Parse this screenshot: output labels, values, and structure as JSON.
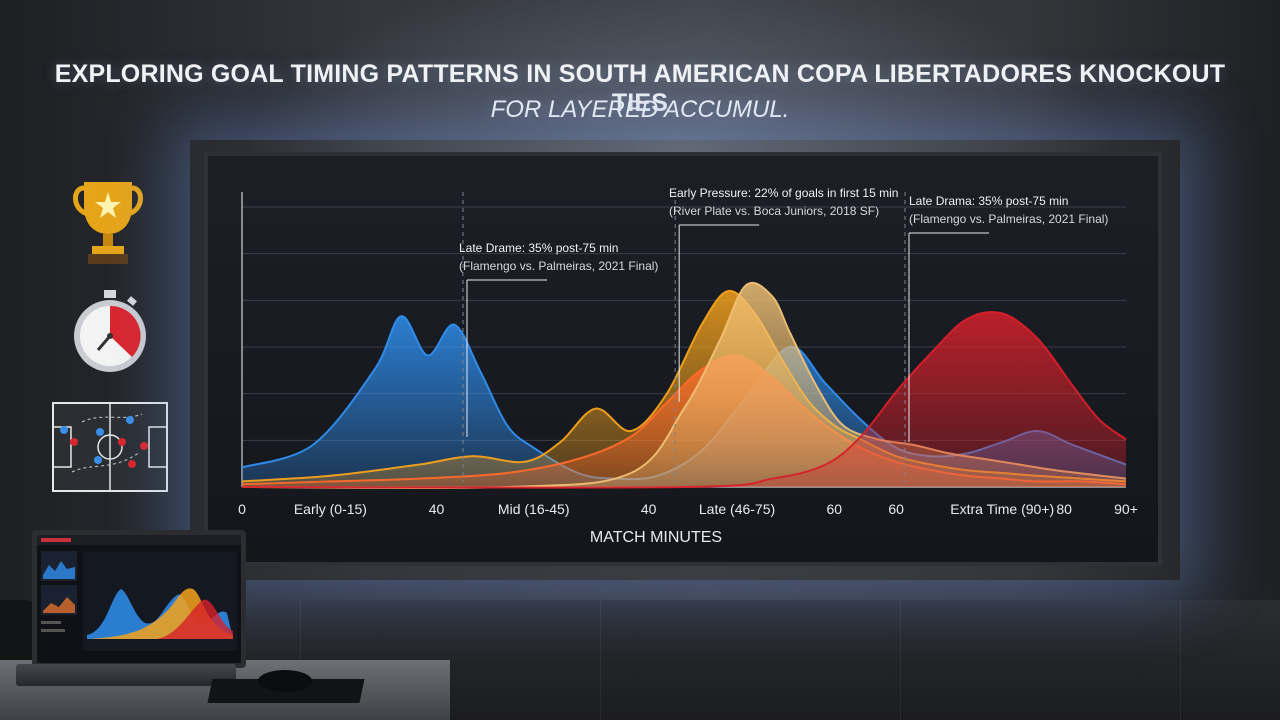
{
  "headline": {
    "line1": "EXPLORING GOAL TIMING PATTERNS IN SOUTH AMERICAN COPA LIBERTADORES KNOCKOUT TIES",
    "line2": "FOR LAYERED ACCUMUL."
  },
  "chart_data": {
    "type": "area",
    "xlabel": "MATCH MINUTES",
    "ylabel": "",
    "xlim": [
      0,
      100
    ],
    "ylim": [
      0,
      1
    ],
    "grid": true,
    "tick_labels": [
      {
        "x": 0,
        "text": "0"
      },
      {
        "x": 10,
        "text": "Early (0-15)"
      },
      {
        "x": 22,
        "text": "40"
      },
      {
        "x": 33,
        "text": "Mid (16-45)"
      },
      {
        "x": 46,
        "text": "40"
      },
      {
        "x": 56,
        "text": "Late (46-75)"
      },
      {
        "x": 67,
        "text": "60"
      },
      {
        "x": 74,
        "text": "60"
      },
      {
        "x": 86,
        "text": "Extra Time (90+)"
      },
      {
        "x": 93,
        "text": "80"
      },
      {
        "x": 100,
        "text": "90+"
      }
    ],
    "series": [
      {
        "color": "#2f8ff0",
        "x": [
          0,
          8,
          15,
          18,
          21,
          24,
          27,
          30,
          33,
          38,
          42,
          47,
          52,
          57,
          62,
          66,
          70,
          74,
          78,
          82,
          86,
          90,
          94,
          100
        ],
        "y": [
          0.07,
          0.15,
          0.42,
          0.61,
          0.47,
          0.58,
          0.41,
          0.22,
          0.14,
          0.05,
          0.03,
          0.04,
          0.13,
          0.32,
          0.5,
          0.37,
          0.24,
          0.14,
          0.11,
          0.12,
          0.16,
          0.2,
          0.15,
          0.08
        ]
      },
      {
        "color": "#f5a21c",
        "x": [
          0,
          10,
          20,
          26,
          32,
          36,
          40,
          44,
          48,
          52,
          55,
          58,
          61,
          64,
          67,
          70,
          74,
          78,
          82,
          86,
          90,
          95,
          100
        ],
        "y": [
          0.02,
          0.04,
          0.08,
          0.11,
          0.09,
          0.16,
          0.28,
          0.2,
          0.33,
          0.58,
          0.7,
          0.62,
          0.46,
          0.31,
          0.22,
          0.17,
          0.11,
          0.08,
          0.06,
          0.05,
          0.04,
          0.03,
          0.02
        ]
      },
      {
        "color": "#ff6a2a",
        "x": [
          0,
          10,
          20,
          30,
          38,
          44,
          48,
          52,
          56,
          60,
          63,
          66,
          70,
          74,
          78,
          82,
          86,
          90,
          95,
          100
        ],
        "y": [
          0.01,
          0.02,
          0.03,
          0.05,
          0.1,
          0.18,
          0.3,
          0.42,
          0.47,
          0.39,
          0.3,
          0.22,
          0.14,
          0.09,
          0.06,
          0.04,
          0.03,
          0.02,
          0.02,
          0.01
        ]
      },
      {
        "color": "#f0c074",
        "x": [
          0,
          30,
          44,
          50,
          54,
          57,
          60,
          62,
          65,
          68,
          72,
          76,
          80,
          84,
          88,
          92,
          100
        ],
        "y": [
          0.0,
          0.0,
          0.05,
          0.28,
          0.52,
          0.72,
          0.68,
          0.55,
          0.36,
          0.22,
          0.17,
          0.15,
          0.12,
          0.1,
          0.08,
          0.06,
          0.03
        ]
      },
      {
        "color": "#d8202b",
        "x": [
          0,
          50,
          60,
          66,
          70,
          74,
          78,
          82,
          86,
          90,
          94,
          97,
          100
        ],
        "y": [
          0.0,
          0.0,
          0.03,
          0.08,
          0.18,
          0.34,
          0.48,
          0.6,
          0.62,
          0.53,
          0.36,
          0.24,
          0.17
        ]
      }
    ],
    "annotations": [
      {
        "x": 25,
        "label": "Late Drame: 35% post-75 min",
        "detail": "(Flamengo vs. Palmeiras, 2021 Final)"
      },
      {
        "x": 49,
        "label": "Early Pressure: 22% of goals in first 15 min",
        "detail": "(River Plate vs. Boca Juniors, 2018 SF)"
      },
      {
        "x": 75,
        "label": "Late Drama: 35% post-75 min",
        "detail": "(Flamengo vs. Palmeiras, 2021 Final)"
      }
    ]
  },
  "icons": {
    "trophy": "trophy-icon",
    "stopwatch": "stopwatch-icon",
    "tactics": "tactics-board-icon"
  }
}
